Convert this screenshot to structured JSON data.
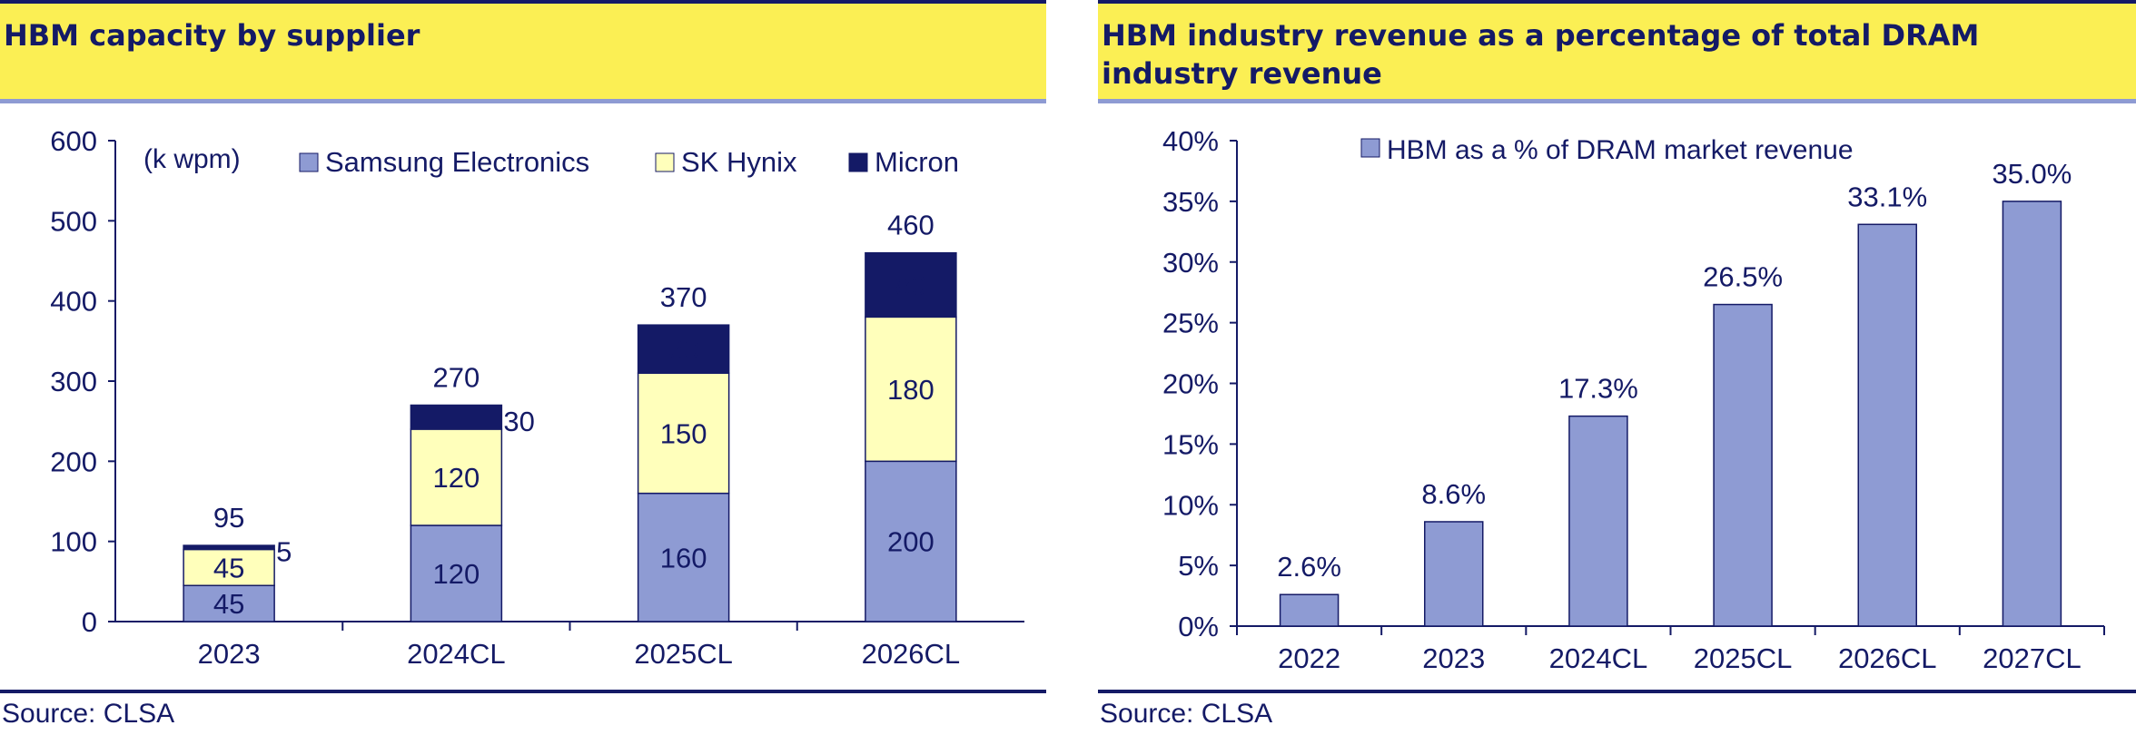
{
  "left": {
    "title": "HBM capacity by supplier",
    "source": "Source: CLSA"
  },
  "right": {
    "title": "HBM industry revenue as a percentage of total DRAM industry revenue",
    "source": "Source: CLSA"
  },
  "colors": {
    "header_bg": "#fbef54",
    "header_rule": "#8e9bd3",
    "navy": "#141a66",
    "samsung": "#8e9bd3",
    "skhynix": "#ffffbb",
    "micron": "#141a66",
    "bar": "#8e9bd3"
  },
  "chart_data": [
    {
      "type": "bar",
      "stacked": true,
      "unit_label": "(k wpm)",
      "categories": [
        "2023",
        "2024CL",
        "2025CL",
        "2026CL"
      ],
      "series": [
        {
          "name": "Samsung Electronics",
          "values": [
            45,
            120,
            160,
            200
          ]
        },
        {
          "name": "SK Hynix",
          "values": [
            45,
            120,
            150,
            180
          ]
        },
        {
          "name": "Micron",
          "values": [
            5,
            30,
            60,
            80
          ]
        }
      ],
      "totals": [
        95,
        270,
        370,
        460
      ],
      "ylim": [
        0,
        600
      ],
      "yticks": [
        0,
        100,
        200,
        300,
        400,
        500,
        600
      ],
      "legend": "top",
      "grid": false
    },
    {
      "type": "bar",
      "categories": [
        "2022",
        "2023",
        "2024CL",
        "2025CL",
        "2026CL",
        "2027CL"
      ],
      "series": [
        {
          "name": "HBM as a % of DRAM market revenue",
          "values": [
            2.6,
            8.6,
            17.3,
            26.5,
            33.1,
            35.0
          ]
        }
      ],
      "value_labels": [
        "2.6%",
        "8.6%",
        "17.3%",
        "26.5%",
        "33.1%",
        "35.0%"
      ],
      "ylim": [
        0,
        40
      ],
      "yticks": [
        0,
        5,
        10,
        15,
        20,
        25,
        30,
        35,
        40
      ],
      "ytick_labels": [
        "0%",
        "5%",
        "10%",
        "15%",
        "20%",
        "25%",
        "30%",
        "35%",
        "40%"
      ],
      "legend": "top",
      "grid": false
    }
  ]
}
